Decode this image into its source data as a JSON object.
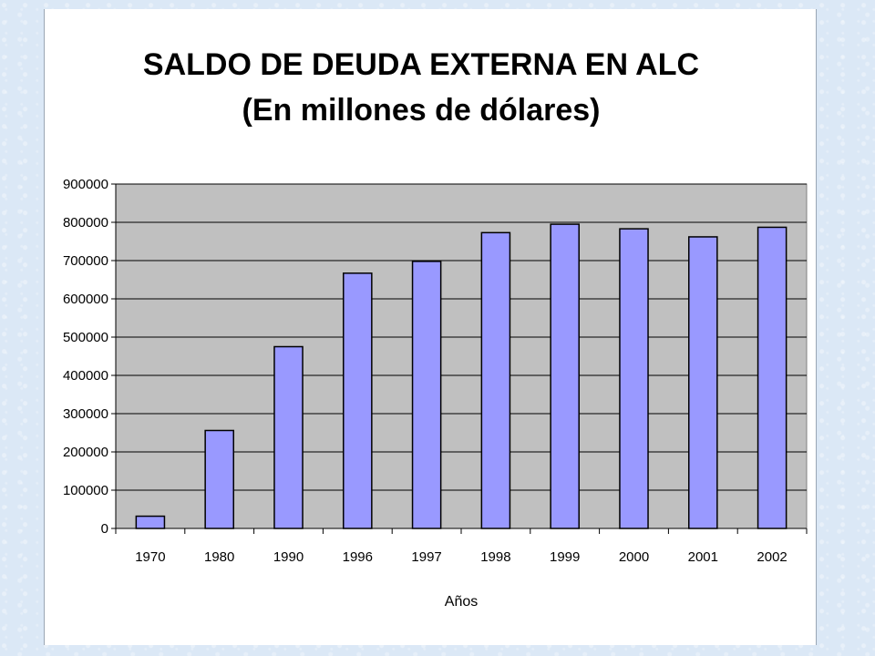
{
  "chart_data": {
    "type": "bar",
    "title": "SALDO DE DEUDA EXTERNA EN ALC",
    "subtitle": "(En millones de dólares)",
    "xlabel": "Años",
    "ylabel": "",
    "categories": [
      "1970",
      "1980",
      "1990",
      "1996",
      "1997",
      "1998",
      "1999",
      "2000",
      "2001",
      "2002"
    ],
    "values": [
      32000,
      256000,
      475000,
      667000,
      698000,
      773000,
      795000,
      783000,
      762000,
      787000
    ],
    "ylim": [
      0,
      900000
    ],
    "yticks": [
      0,
      100000,
      200000,
      300000,
      400000,
      500000,
      600000,
      700000,
      800000,
      900000
    ],
    "ytick_labels": [
      "0",
      "100000",
      "200000",
      "300000",
      "400000",
      "500000",
      "600000",
      "700000",
      "800000",
      "900000"
    ],
    "grid": true,
    "legend": "none",
    "colors": {
      "bar_fill": "#9999ff",
      "bar_stroke": "#000000",
      "plot_background": "#c0c0c0",
      "gridline": "#000000"
    }
  }
}
